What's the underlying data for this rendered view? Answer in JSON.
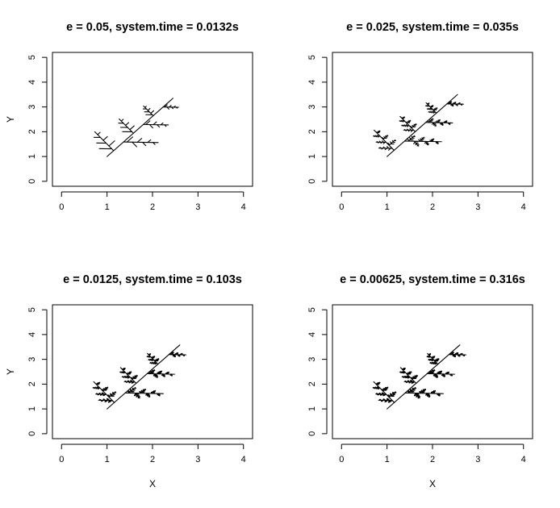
{
  "chart_data": [
    {
      "type": "line",
      "title": "e = 0.05, system.time = 0.0132s",
      "xlabel": "",
      "ylabel": "Y",
      "xlim": [
        -0.2,
        4.2
      ],
      "ylim": [
        -0.2,
        5.2
      ],
      "xticks": [
        "0",
        "1",
        "2",
        "3",
        "4"
      ],
      "yticks": [
        "0",
        "1",
        "2",
        "3",
        "4",
        "5"
      ],
      "grid": false,
      "fractal": {
        "depth": 2,
        "start": [
          1,
          1
        ],
        "end": [
          2.45,
          3.35
        ]
      }
    },
    {
      "type": "line",
      "title": "e = 0.025, system.time = 0.035s",
      "xlabel": "",
      "ylabel": "",
      "xlim": [
        -0.2,
        4.2
      ],
      "ylim": [
        -0.2,
        5.2
      ],
      "xticks": [
        "0",
        "1",
        "2",
        "3",
        "4"
      ],
      "yticks": [
        "0",
        "1",
        "2",
        "3",
        "4",
        "5"
      ],
      "grid": false,
      "fractal": {
        "depth": 3,
        "start": [
          1,
          1
        ],
        "end": [
          2.55,
          3.5
        ]
      }
    },
    {
      "type": "line",
      "title": "e = 0.0125, system.time = 0.103s",
      "xlabel": "X",
      "ylabel": "Y",
      "xlim": [
        -0.2,
        4.2
      ],
      "ylim": [
        -0.2,
        5.2
      ],
      "xticks": [
        "0",
        "1",
        "2",
        "3",
        "4"
      ],
      "yticks": [
        "0",
        "1",
        "2",
        "3",
        "4",
        "5"
      ],
      "grid": false,
      "fractal": {
        "depth": 4,
        "start": [
          1,
          1
        ],
        "end": [
          2.6,
          3.58
        ]
      }
    },
    {
      "type": "line",
      "title": "e = 0.00625, system.time = 0.316s",
      "xlabel": "X",
      "ylabel": "",
      "xlim": [
        -0.2,
        4.2
      ],
      "ylim": [
        -0.2,
        5.2
      ],
      "xticks": [
        "0",
        "1",
        "2",
        "3",
        "4"
      ],
      "yticks": [
        "0",
        "1",
        "2",
        "3",
        "4",
        "5"
      ],
      "grid": false,
      "fractal": {
        "depth": 5,
        "start": [
          1,
          1
        ],
        "end": [
          2.6,
          3.58
        ]
      }
    }
  ]
}
